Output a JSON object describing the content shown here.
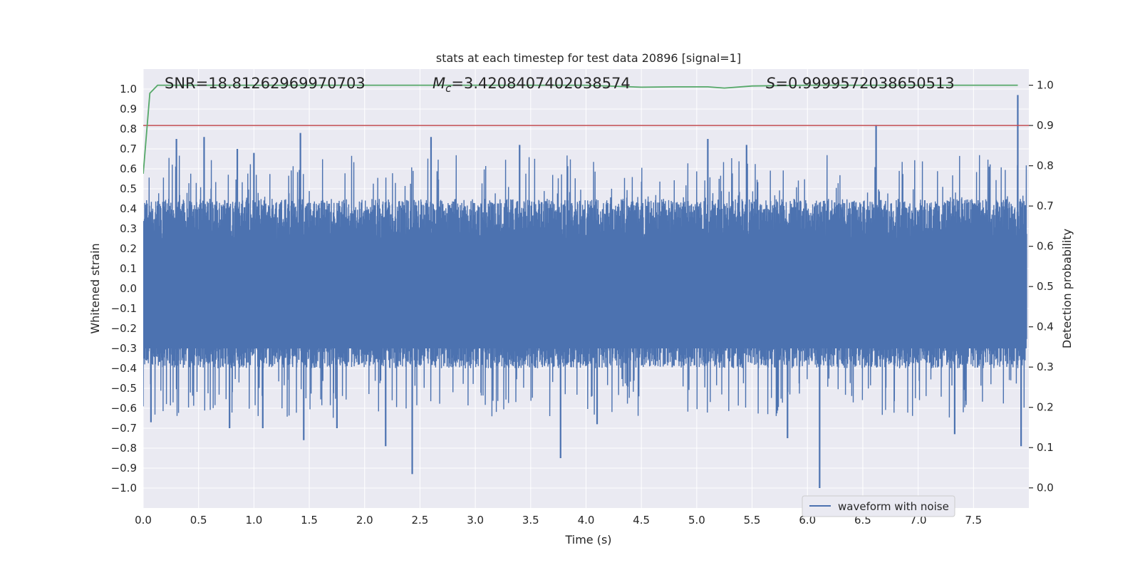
{
  "chart_data": {
    "type": "line",
    "title": "stats at each timestep for test data 20896 [signal=1]",
    "xlabel": "Time (s)",
    "ylabel": "Whitened strain",
    "ylabel_right": "Detection probability",
    "xlim": [
      0.0,
      8.0
    ],
    "ylim": [
      -1.1,
      1.1
    ],
    "ylim_right": [
      -0.05,
      1.04
    ],
    "x_ticks": [
      "0.0",
      "0.5",
      "1.0",
      "1.5",
      "2.0",
      "2.5",
      "3.0",
      "3.5",
      "4.0",
      "4.5",
      "5.0",
      "5.5",
      "6.0",
      "6.5",
      "7.0",
      "7.5"
    ],
    "x_tick_values": [
      0.0,
      0.5,
      1.0,
      1.5,
      2.0,
      2.5,
      3.0,
      3.5,
      4.0,
      4.5,
      5.0,
      5.5,
      6.0,
      6.5,
      7.0,
      7.5
    ],
    "y_ticks": [
      "1.0",
      "0.9",
      "0.8",
      "0.7",
      "0.6",
      "0.5",
      "0.4",
      "0.3",
      "0.2",
      "0.1",
      "0.0",
      "−0.1",
      "−0.2",
      "−0.3",
      "−0.4",
      "−0.5",
      "−0.6",
      "−0.7",
      "−0.8",
      "−0.9",
      "−1.0"
    ],
    "y_tick_values": [
      1.0,
      0.9,
      0.8,
      0.7,
      0.6,
      0.5,
      0.4,
      0.3,
      0.2,
      0.1,
      0.0,
      -0.1,
      -0.2,
      -0.3,
      -0.4,
      -0.5,
      -0.6,
      -0.7,
      -0.8,
      -0.9,
      -1.0
    ],
    "y_right_ticks": [
      "1.0",
      "0.9",
      "0.8",
      "0.7",
      "0.6",
      "0.5",
      "0.4",
      "0.3",
      "0.2",
      "0.1",
      "0.0"
    ],
    "y_right_tick_values": [
      1.0,
      0.9,
      0.8,
      0.7,
      0.6,
      0.5,
      0.4,
      0.3,
      0.2,
      0.1,
      0.0
    ],
    "grid": true,
    "legend": {
      "entries": [
        "waveform with noise"
      ],
      "placement": "lower-right"
    },
    "annotations": {
      "snr": "SNR=18.81262969970703",
      "mc_symbol": "M",
      "mc_sub": "c",
      "mc_value": "=3.4208407402038574",
      "s_symbol": "S",
      "s_value": "=0.9999572038650513"
    },
    "threshold_right": 0.9,
    "series": [
      {
        "name": "waveform with noise",
        "axis": "left",
        "color": "#4c72b0",
        "style": "dense-noise",
        "band": [
          -0.4,
          0.45
        ],
        "peaks": [
          {
            "x": 0.3,
            "y": 0.75
          },
          {
            "x": 0.55,
            "y": 0.76
          },
          {
            "x": 1.42,
            "y": 0.78
          },
          {
            "x": 2.6,
            "y": 0.76
          },
          {
            "x": 5.1,
            "y": 0.75
          },
          {
            "x": 6.62,
            "y": 0.82
          },
          {
            "x": 7.9,
            "y": 0.97
          },
          {
            "x": 0.85,
            "y": 0.7
          },
          {
            "x": 1.0,
            "y": 0.68
          },
          {
            "x": 3.4,
            "y": 0.72
          },
          {
            "x": 5.45,
            "y": 0.72
          }
        ],
        "troughs": [
          {
            "x": 2.43,
            "y": -0.93
          },
          {
            "x": 6.11,
            "y": -1.0
          },
          {
            "x": 3.77,
            "y": -0.85
          },
          {
            "x": 1.45,
            "y": -0.76
          },
          {
            "x": 2.19,
            "y": -0.79
          },
          {
            "x": 5.82,
            "y": -0.75
          },
          {
            "x": 7.93,
            "y": -0.79
          },
          {
            "x": 7.33,
            "y": -0.73
          },
          {
            "x": 1.08,
            "y": -0.7
          },
          {
            "x": 0.78,
            "y": -0.7
          },
          {
            "x": 1.75,
            "y": -0.7
          },
          {
            "x": 4.1,
            "y": -0.68
          },
          {
            "x": 0.07,
            "y": -0.67
          }
        ]
      },
      {
        "name": "",
        "axis": "right",
        "color": "#55a868",
        "x": [
          0.0,
          0.06,
          0.13,
          0.5,
          1.0,
          2.0,
          3.0,
          3.5,
          4.0,
          4.5,
          4.8,
          5.1,
          5.25,
          5.5,
          6.0,
          6.5,
          7.0,
          7.5,
          7.9
        ],
        "y": [
          0.78,
          0.98,
          1.0,
          1.0,
          1.0,
          1.0,
          1.0,
          1.0,
          1.0,
          0.995,
          0.996,
          0.996,
          0.993,
          0.998,
          1.0,
          1.0,
          1.0,
          1.0,
          1.0
        ]
      }
    ]
  }
}
